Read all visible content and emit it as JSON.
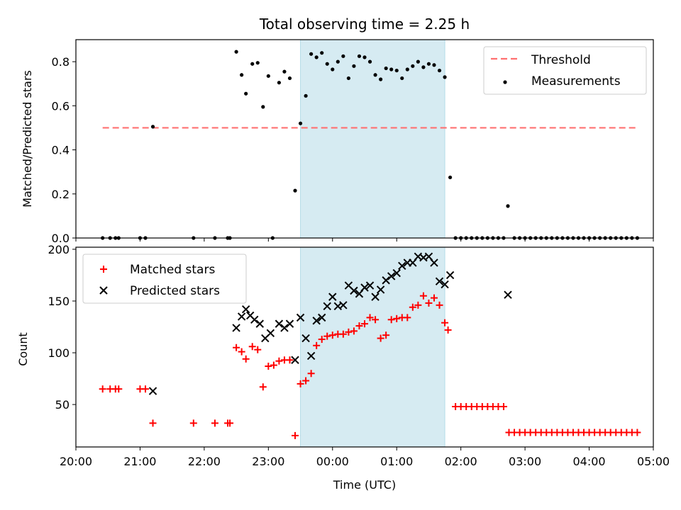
{
  "chart_data": [
    {
      "type": "scatter",
      "title": "Total observing time = 2.25 h",
      "xlabel": "",
      "ylabel": "Matched/Predicted stars",
      "xlim": [
        "20:00",
        "05:00"
      ],
      "ylim": [
        0,
        0.9
      ],
      "yticks": [
        "0.0",
        "0.2",
        "0.4",
        "0.6",
        "0.8"
      ],
      "legend": {
        "position": "top-right",
        "threshold_label": "Threshold",
        "measurements_label": "Measurements"
      },
      "shaded_interval": [
        "23:30",
        "01:45"
      ],
      "colors": {
        "shade": "#add8e6",
        "threshold": "#ff7070",
        "points": "#000000"
      },
      "threshold": {
        "value": 0.5,
        "x_from": "20:25",
        "x_to": "04:45"
      },
      "series": [
        {
          "name": "Measurements",
          "points": [
            [
              "20:25",
              0
            ],
            [
              "20:32",
              0
            ],
            [
              "20:37",
              0
            ],
            [
              "20:40",
              0
            ],
            [
              "21:00",
              0
            ],
            [
              "21:05",
              0
            ],
            [
              "21:12",
              0.505
            ],
            [
              "21:50",
              0
            ],
            [
              "22:10",
              0
            ],
            [
              "22:22",
              0
            ],
            [
              "22:24",
              0
            ],
            [
              "22:30",
              0.845
            ],
            [
              "22:35",
              0.74
            ],
            [
              "22:39",
              0.655
            ],
            [
              "22:45",
              0.79
            ],
            [
              "22:50",
              0.795
            ],
            [
              "22:55",
              0.595
            ],
            [
              "23:00",
              0.735
            ],
            [
              "23:04",
              0
            ],
            [
              "23:10",
              0.705
            ],
            [
              "23:15",
              0.755
            ],
            [
              "23:20",
              0.725
            ],
            [
              "23:25",
              0.215
            ],
            [
              "23:30",
              0.52
            ],
            [
              "23:35",
              0.645
            ],
            [
              "23:40",
              0.835
            ],
            [
              "23:45",
              0.82
            ],
            [
              "23:50",
              0.84
            ],
            [
              "23:55",
              0.79
            ],
            [
              "00:00",
              0.765
            ],
            [
              "00:05",
              0.8
            ],
            [
              "00:10",
              0.825
            ],
            [
              "00:15",
              0.725
            ],
            [
              "00:20",
              0.78
            ],
            [
              "00:25",
              0.825
            ],
            [
              "00:30",
              0.82
            ],
            [
              "00:35",
              0.8
            ],
            [
              "00:40",
              0.74
            ],
            [
              "00:45",
              0.72
            ],
            [
              "00:50",
              0.77
            ],
            [
              "00:55",
              0.765
            ],
            [
              "01:00",
              0.76
            ],
            [
              "01:05",
              0.725
            ],
            [
              "01:10",
              0.765
            ],
            [
              "01:15",
              0.78
            ],
            [
              "01:20",
              0.8
            ],
            [
              "01:25",
              0.775
            ],
            [
              "01:30",
              0.79
            ],
            [
              "01:35",
              0.785
            ],
            [
              "01:40",
              0.76
            ],
            [
              "01:45",
              0.73
            ],
            [
              "01:50",
              0.275
            ],
            [
              "01:55",
              0
            ],
            [
              "02:00",
              0
            ],
            [
              "02:05",
              0
            ],
            [
              "02:10",
              0
            ],
            [
              "02:15",
              0
            ],
            [
              "02:20",
              0
            ],
            [
              "02:25",
              0
            ],
            [
              "02:30",
              0
            ],
            [
              "02:35",
              0
            ],
            [
              "02:40",
              0
            ],
            [
              "02:44",
              0.145
            ],
            [
              "02:50",
              0
            ],
            [
              "02:55",
              0
            ],
            [
              "03:00",
              0
            ],
            [
              "03:05",
              0
            ],
            [
              "03:10",
              0
            ],
            [
              "03:15",
              0
            ],
            [
              "03:20",
              0
            ],
            [
              "03:25",
              0
            ],
            [
              "03:30",
              0
            ],
            [
              "03:35",
              0
            ],
            [
              "03:40",
              0
            ],
            [
              "03:45",
              0
            ],
            [
              "03:50",
              0
            ],
            [
              "03:55",
              0
            ],
            [
              "04:00",
              0
            ],
            [
              "04:05",
              0
            ],
            [
              "04:10",
              0
            ],
            [
              "04:15",
              0
            ],
            [
              "04:20",
              0
            ],
            [
              "04:25",
              0
            ],
            [
              "04:30",
              0
            ],
            [
              "04:35",
              0
            ],
            [
              "04:40",
              0
            ],
            [
              "04:45",
              0
            ]
          ]
        }
      ]
    },
    {
      "type": "scatter",
      "title": "",
      "xlabel": "Time (UTC)",
      "ylabel": "Count",
      "xlim": [
        "20:00",
        "05:00"
      ],
      "ylim": [
        9,
        202
      ],
      "xticks": [
        "20:00",
        "21:00",
        "22:00",
        "23:00",
        "00:00",
        "01:00",
        "02:00",
        "03:00",
        "04:00",
        "05:00"
      ],
      "yticks": [
        "50",
        "100",
        "150",
        "200"
      ],
      "legend": {
        "position": "top-left",
        "matched_label": "Matched stars",
        "predicted_label": "Predicted stars"
      },
      "shaded_interval": [
        "23:30",
        "01:45"
      ],
      "colors": {
        "shade": "#add8e6",
        "matched": "#ff0000",
        "predicted": "#000000"
      },
      "series": [
        {
          "name": "Matched stars",
          "points": [
            [
              "20:25",
              65
            ],
            [
              "20:32",
              65
            ],
            [
              "20:37",
              65
            ],
            [
              "20:40",
              65
            ],
            [
              "21:00",
              65
            ],
            [
              "21:05",
              65
            ],
            [
              "21:12",
              32
            ],
            [
              "21:50",
              32
            ],
            [
              "22:10",
              32
            ],
            [
              "22:22",
              32
            ],
            [
              "22:24",
              32
            ],
            [
              "22:30",
              105
            ],
            [
              "22:35",
              101
            ],
            [
              "22:39",
              94
            ],
            [
              "22:45",
              106
            ],
            [
              "22:50",
              103
            ],
            [
              "22:55",
              67
            ],
            [
              "23:00",
              87
            ],
            [
              "23:05",
              88
            ],
            [
              "23:10",
              92
            ],
            [
              "23:15",
              93
            ],
            [
              "23:20",
              93
            ],
            [
              "23:25",
              20
            ],
            [
              "23:30",
              70
            ],
            [
              "23:35",
              73
            ],
            [
              "23:40",
              80
            ],
            [
              "23:45",
              107
            ],
            [
              "23:50",
              113
            ],
            [
              "23:55",
              116
            ],
            [
              "00:00",
              117
            ],
            [
              "00:05",
              118
            ],
            [
              "00:10",
              118
            ],
            [
              "00:15",
              120
            ],
            [
              "00:20",
              121
            ],
            [
              "00:25",
              126
            ],
            [
              "00:30",
              128
            ],
            [
              "00:35",
              134
            ],
            [
              "00:40",
              132
            ],
            [
              "00:45",
              114
            ],
            [
              "00:50",
              117
            ],
            [
              "00:55",
              132
            ],
            [
              "01:00",
              133
            ],
            [
              "01:05",
              134
            ],
            [
              "01:10",
              134
            ],
            [
              "01:15",
              144
            ],
            [
              "01:20",
              146
            ],
            [
              "01:25",
              155
            ],
            [
              "01:30",
              148
            ],
            [
              "01:35",
              153
            ],
            [
              "01:40",
              146
            ],
            [
              "01:45",
              129
            ],
            [
              "01:48",
              122
            ],
            [
              "01:55",
              48
            ],
            [
              "02:00",
              48
            ],
            [
              "02:05",
              48
            ],
            [
              "02:10",
              48
            ],
            [
              "02:15",
              48
            ],
            [
              "02:20",
              48
            ],
            [
              "02:25",
              48
            ],
            [
              "02:30",
              48
            ],
            [
              "02:35",
              48
            ],
            [
              "02:40",
              48
            ],
            [
              "02:45",
              23
            ],
            [
              "02:50",
              23
            ],
            [
              "02:55",
              23
            ],
            [
              "03:00",
              23
            ],
            [
              "03:05",
              23
            ],
            [
              "03:10",
              23
            ],
            [
              "03:15",
              23
            ],
            [
              "03:20",
              23
            ],
            [
              "03:25",
              23
            ],
            [
              "03:30",
              23
            ],
            [
              "03:35",
              23
            ],
            [
              "03:40",
              23
            ],
            [
              "03:45",
              23
            ],
            [
              "03:50",
              23
            ],
            [
              "03:55",
              23
            ],
            [
              "04:00",
              23
            ],
            [
              "04:05",
              23
            ],
            [
              "04:10",
              23
            ],
            [
              "04:15",
              23
            ],
            [
              "04:20",
              23
            ],
            [
              "04:25",
              23
            ],
            [
              "04:30",
              23
            ],
            [
              "04:35",
              23
            ],
            [
              "04:40",
              23
            ],
            [
              "04:45",
              23
            ]
          ]
        },
        {
          "name": "Predicted stars",
          "points": [
            [
              "21:12",
              63
            ],
            [
              "22:30",
              124
            ],
            [
              "22:35",
              135
            ],
            [
              "22:39",
              142
            ],
            [
              "22:43",
              136
            ],
            [
              "22:47",
              132
            ],
            [
              "22:52",
              128
            ],
            [
              "22:57",
              114
            ],
            [
              "23:02",
              119
            ],
            [
              "23:10",
              128
            ],
            [
              "23:15",
              124
            ],
            [
              "23:20",
              128
            ],
            [
              "23:25",
              93
            ],
            [
              "23:30",
              134
            ],
            [
              "23:35",
              114
            ],
            [
              "23:40",
              97
            ],
            [
              "23:45",
              131
            ],
            [
              "23:50",
              134
            ],
            [
              "23:55",
              145
            ],
            [
              "00:00",
              154
            ],
            [
              "00:05",
              145
            ],
            [
              "00:10",
              146
            ],
            [
              "00:15",
              165
            ],
            [
              "00:20",
              160
            ],
            [
              "00:25",
              157
            ],
            [
              "00:30",
              163
            ],
            [
              "00:35",
              165
            ],
            [
              "00:40",
              154
            ],
            [
              "00:45",
              161
            ],
            [
              "00:50",
              170
            ],
            [
              "00:55",
              174
            ],
            [
              "01:00",
              177
            ],
            [
              "01:05",
              184
            ],
            [
              "01:10",
              187
            ],
            [
              "01:15",
              187
            ],
            [
              "01:20",
              193
            ],
            [
              "01:25",
              192
            ],
            [
              "01:30",
              193
            ],
            [
              "01:35",
              187
            ],
            [
              "01:40",
              169
            ],
            [
              "01:45",
              166
            ],
            [
              "01:50",
              175
            ],
            [
              "02:44",
              156
            ]
          ]
        }
      ]
    }
  ]
}
